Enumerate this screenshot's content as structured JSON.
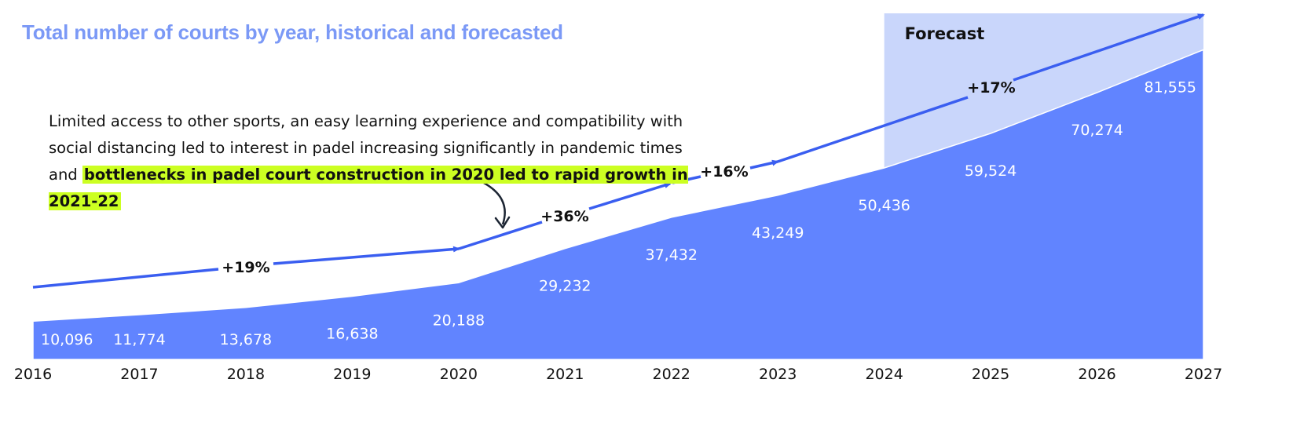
{
  "chart_data": {
    "type": "area",
    "title": "Total number of courts by year, historical and forecasted",
    "categories": [
      "2016",
      "2017",
      "2018",
      "2019",
      "2020",
      "2021",
      "2022",
      "2023",
      "2024",
      "2025",
      "2026",
      "2027"
    ],
    "values": [
      10096,
      11774,
      13678,
      16638,
      20188,
      29232,
      37432,
      43249,
      50436,
      59524,
      70274,
      81555
    ],
    "value_labels": [
      "10,096",
      "11,774",
      "13,678",
      "16,638",
      "20,188",
      "29,232",
      "37,432",
      "43,249",
      "50,436",
      "59,524",
      "70,274",
      "81,555"
    ],
    "forecast_label": "Forecast",
    "forecast_start": "2024",
    "growth_labels": [
      "+19%",
      "+36%",
      "+16%",
      "+17%"
    ],
    "annotation_text": "Limited access to other sports, an easy learning experience and compatibility with social distancing led to interest in padel increasing significantly in pandemic times and",
    "annotation_highlight": "bottlenecks in padel court construction in 2020 led to rapid growth in 2021-22",
    "colors": {
      "area": "#6184ff",
      "arrow": "#3a5ef0",
      "forecast": "#c9d6fb",
      "title": "#7b99f6",
      "highlight": "#ccff22"
    }
  }
}
